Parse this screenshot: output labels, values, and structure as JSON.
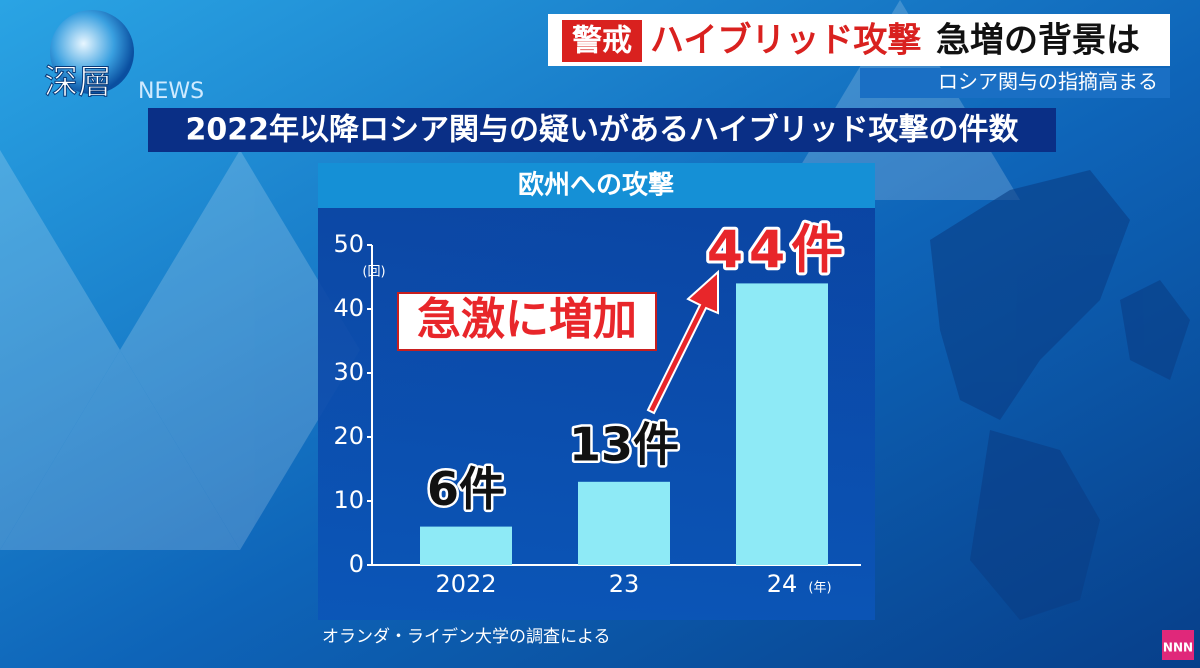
{
  "logo": {
    "title": "深層",
    "suffix": "NEWS"
  },
  "headline": {
    "tag": "警戒",
    "topic": "ハイブリッド攻撃",
    "rest": "急増の背景は",
    "sub": "ロシア関与の指摘高まる"
  },
  "corner_logo": "NNN",
  "chart_data": {
    "type": "bar",
    "title": "2022年以降ロシア関与の疑いがあるハイブリッド攻撃の件数",
    "subtitle": "欧州への攻撃",
    "y_unit": "(回)",
    "x_unit": "(年)",
    "categories": [
      "2022",
      "23",
      "24"
    ],
    "values": [
      6,
      13,
      44
    ],
    "value_labels": [
      "6件",
      "13件",
      "44件"
    ],
    "annotation": "急激に増加",
    "source": "オランダ・ライデン大学の調査による",
    "color": "#8eeaf6",
    "ylim": [
      0,
      50
    ],
    "yticks": [
      0,
      10,
      20,
      30,
      40,
      50
    ]
  }
}
